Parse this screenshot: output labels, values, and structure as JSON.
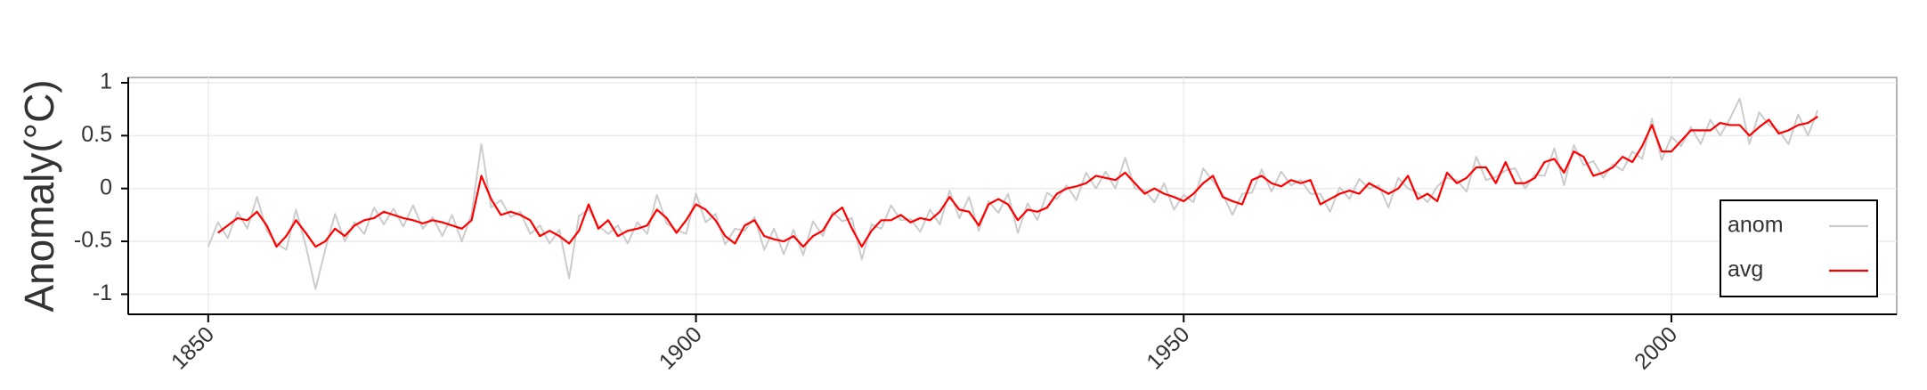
{
  "chart_data": {
    "type": "line",
    "y_label": "Anomaly(°C)",
    "x": [
      1850,
      1851,
      1852,
      1853,
      1854,
      1855,
      1856,
      1857,
      1858,
      1859,
      1860,
      1861,
      1862,
      1863,
      1864,
      1865,
      1866,
      1867,
      1868,
      1869,
      1870,
      1871,
      1872,
      1873,
      1874,
      1875,
      1876,
      1877,
      1878,
      1879,
      1880,
      1881,
      1882,
      1883,
      1884,
      1885,
      1886,
      1887,
      1888,
      1889,
      1890,
      1891,
      1892,
      1893,
      1894,
      1895,
      1896,
      1897,
      1898,
      1899,
      1900,
      1901,
      1902,
      1903,
      1904,
      1905,
      1906,
      1907,
      1908,
      1909,
      1910,
      1911,
      1912,
      1913,
      1914,
      1915,
      1916,
      1917,
      1918,
      1919,
      1920,
      1921,
      1922,
      1923,
      1924,
      1925,
      1926,
      1927,
      1928,
      1929,
      1930,
      1931,
      1932,
      1933,
      1934,
      1935,
      1936,
      1937,
      1938,
      1939,
      1940,
      1941,
      1942,
      1943,
      1944,
      1945,
      1946,
      1947,
      1948,
      1949,
      1950,
      1951,
      1952,
      1953,
      1954,
      1955,
      1956,
      1957,
      1958,
      1959,
      1960,
      1961,
      1962,
      1963,
      1964,
      1965,
      1966,
      1967,
      1968,
      1969,
      1970,
      1971,
      1972,
      1973,
      1974,
      1975,
      1976,
      1977,
      1978,
      1979,
      1980,
      1981,
      1982,
      1983,
      1984,
      1985,
      1986,
      1987,
      1988,
      1989,
      1990,
      1991,
      1992,
      1993,
      1994,
      1995,
      1996,
      1997,
      1998,
      1999,
      2000,
      2001,
      2002,
      2003,
      2004,
      2005,
      2006,
      2007,
      2008,
      2009,
      2010,
      2011,
      2012,
      2013,
      2014,
      2015
    ],
    "series": [
      {
        "name": "anom",
        "color": "#cccccc",
        "values": [
          -0.55,
          -0.32,
          -0.47,
          -0.22,
          -0.38,
          -0.08,
          -0.4,
          -0.52,
          -0.58,
          -0.2,
          -0.54,
          -0.95,
          -0.58,
          -0.24,
          -0.5,
          -0.32,
          -0.43,
          -0.18,
          -0.34,
          -0.19,
          -0.36,
          -0.16,
          -0.38,
          -0.27,
          -0.45,
          -0.25,
          -0.5,
          -0.24,
          0.42,
          -0.18,
          -0.11,
          -0.27,
          -0.22,
          -0.43,
          -0.35,
          -0.52,
          -0.39,
          -0.85,
          -0.26,
          -0.2,
          -0.35,
          -0.43,
          -0.35,
          -0.52,
          -0.32,
          -0.43,
          -0.06,
          -0.33,
          -0.39,
          -0.43,
          -0.05,
          -0.32,
          -0.24,
          -0.53,
          -0.38,
          -0.4,
          -0.27,
          -0.58,
          -0.38,
          -0.62,
          -0.39,
          -0.63,
          -0.31,
          -0.45,
          -0.22,
          -0.31,
          -0.28,
          -0.67,
          -0.34,
          -0.38,
          -0.16,
          -0.3,
          -0.29,
          -0.41,
          -0.2,
          -0.34,
          -0.02,
          -0.28,
          -0.08,
          -0.4,
          -0.12,
          -0.23,
          -0.05,
          -0.42,
          -0.14,
          -0.3,
          -0.04,
          -0.1,
          0.03,
          -0.11,
          0.15,
          0.0,
          0.16,
          0.0,
          0.29,
          0.0,
          -0.02,
          -0.13,
          0.05,
          -0.2,
          -0.06,
          -0.13,
          0.19,
          0.07,
          -0.05,
          -0.25,
          -0.05,
          -0.04,
          0.18,
          -0.03,
          0.16,
          0.03,
          0.08,
          -0.05,
          -0.05,
          -0.22,
          0.01,
          -0.1,
          0.09,
          0.0,
          0.03,
          -0.18,
          0.1,
          0.0,
          -0.04,
          -0.13,
          0.02,
          0.1,
          0.08,
          -0.03,
          0.3,
          0.08,
          0.11,
          0.17,
          0.19,
          0.0,
          0.13,
          0.12,
          0.38,
          0.03,
          0.41,
          0.22,
          0.26,
          0.1,
          0.23,
          0.17,
          0.35,
          0.28,
          0.66,
          0.27,
          0.49,
          0.4,
          0.58,
          0.42,
          0.65,
          0.5,
          0.66,
          0.85,
          0.42,
          0.72,
          0.6,
          0.55,
          0.42,
          0.7,
          0.5,
          0.74
        ]
      },
      {
        "name": "avg",
        "color": "#ff0000",
        "values": [
          null,
          -0.42,
          -0.35,
          -0.28,
          -0.3,
          -0.22,
          -0.35,
          -0.55,
          -0.45,
          -0.3,
          -0.42,
          -0.55,
          -0.5,
          -0.38,
          -0.45,
          -0.35,
          -0.3,
          -0.28,
          -0.22,
          -0.25,
          -0.28,
          -0.3,
          -0.33,
          -0.3,
          -0.32,
          -0.35,
          -0.38,
          -0.3,
          0.12,
          -0.1,
          -0.25,
          -0.22,
          -0.25,
          -0.3,
          -0.45,
          -0.4,
          -0.45,
          -0.52,
          -0.4,
          -0.15,
          -0.38,
          -0.3,
          -0.45,
          -0.4,
          -0.38,
          -0.35,
          -0.2,
          -0.28,
          -0.42,
          -0.3,
          -0.15,
          -0.2,
          -0.3,
          -0.45,
          -0.52,
          -0.35,
          -0.3,
          -0.45,
          -0.48,
          -0.5,
          -0.45,
          -0.55,
          -0.45,
          -0.4,
          -0.25,
          -0.18,
          -0.38,
          -0.55,
          -0.4,
          -0.3,
          -0.3,
          -0.25,
          -0.32,
          -0.28,
          -0.3,
          -0.22,
          -0.08,
          -0.2,
          -0.22,
          -0.35,
          -0.15,
          -0.1,
          -0.15,
          -0.3,
          -0.2,
          -0.22,
          -0.18,
          -0.05,
          0.0,
          0.02,
          0.05,
          0.12,
          0.1,
          0.08,
          0.15,
          0.05,
          -0.05,
          0.0,
          -0.05,
          -0.08,
          -0.12,
          -0.05,
          0.05,
          0.12,
          -0.08,
          -0.12,
          -0.15,
          0.08,
          0.12,
          0.05,
          0.02,
          0.08,
          0.05,
          0.08,
          -0.15,
          -0.1,
          -0.05,
          -0.02,
          -0.05,
          0.05,
          0.0,
          -0.05,
          0.0,
          0.12,
          -0.1,
          -0.05,
          -0.12,
          0.15,
          0.05,
          0.1,
          0.2,
          0.2,
          0.05,
          0.25,
          0.05,
          0.05,
          0.1,
          0.25,
          0.28,
          0.15,
          0.35,
          0.3,
          0.12,
          0.15,
          0.2,
          0.3,
          0.25,
          0.4,
          0.6,
          0.35,
          0.35,
          0.45,
          0.55,
          0.55,
          0.55,
          0.62,
          0.6,
          0.6,
          0.5,
          0.58,
          0.65,
          0.52,
          0.55,
          0.6,
          0.62,
          0.68
        ]
      }
    ],
    "xlim": [
      1841.8,
      2023.1
    ],
    "xticks": [
      1850,
      1900,
      1950,
      2000
    ],
    "ylim": [
      -1.19,
      1.05
    ],
    "yticks": [
      1,
      0.5,
      0,
      -0.5,
      -1
    ],
    "grid": true,
    "legend": "lower right"
  }
}
